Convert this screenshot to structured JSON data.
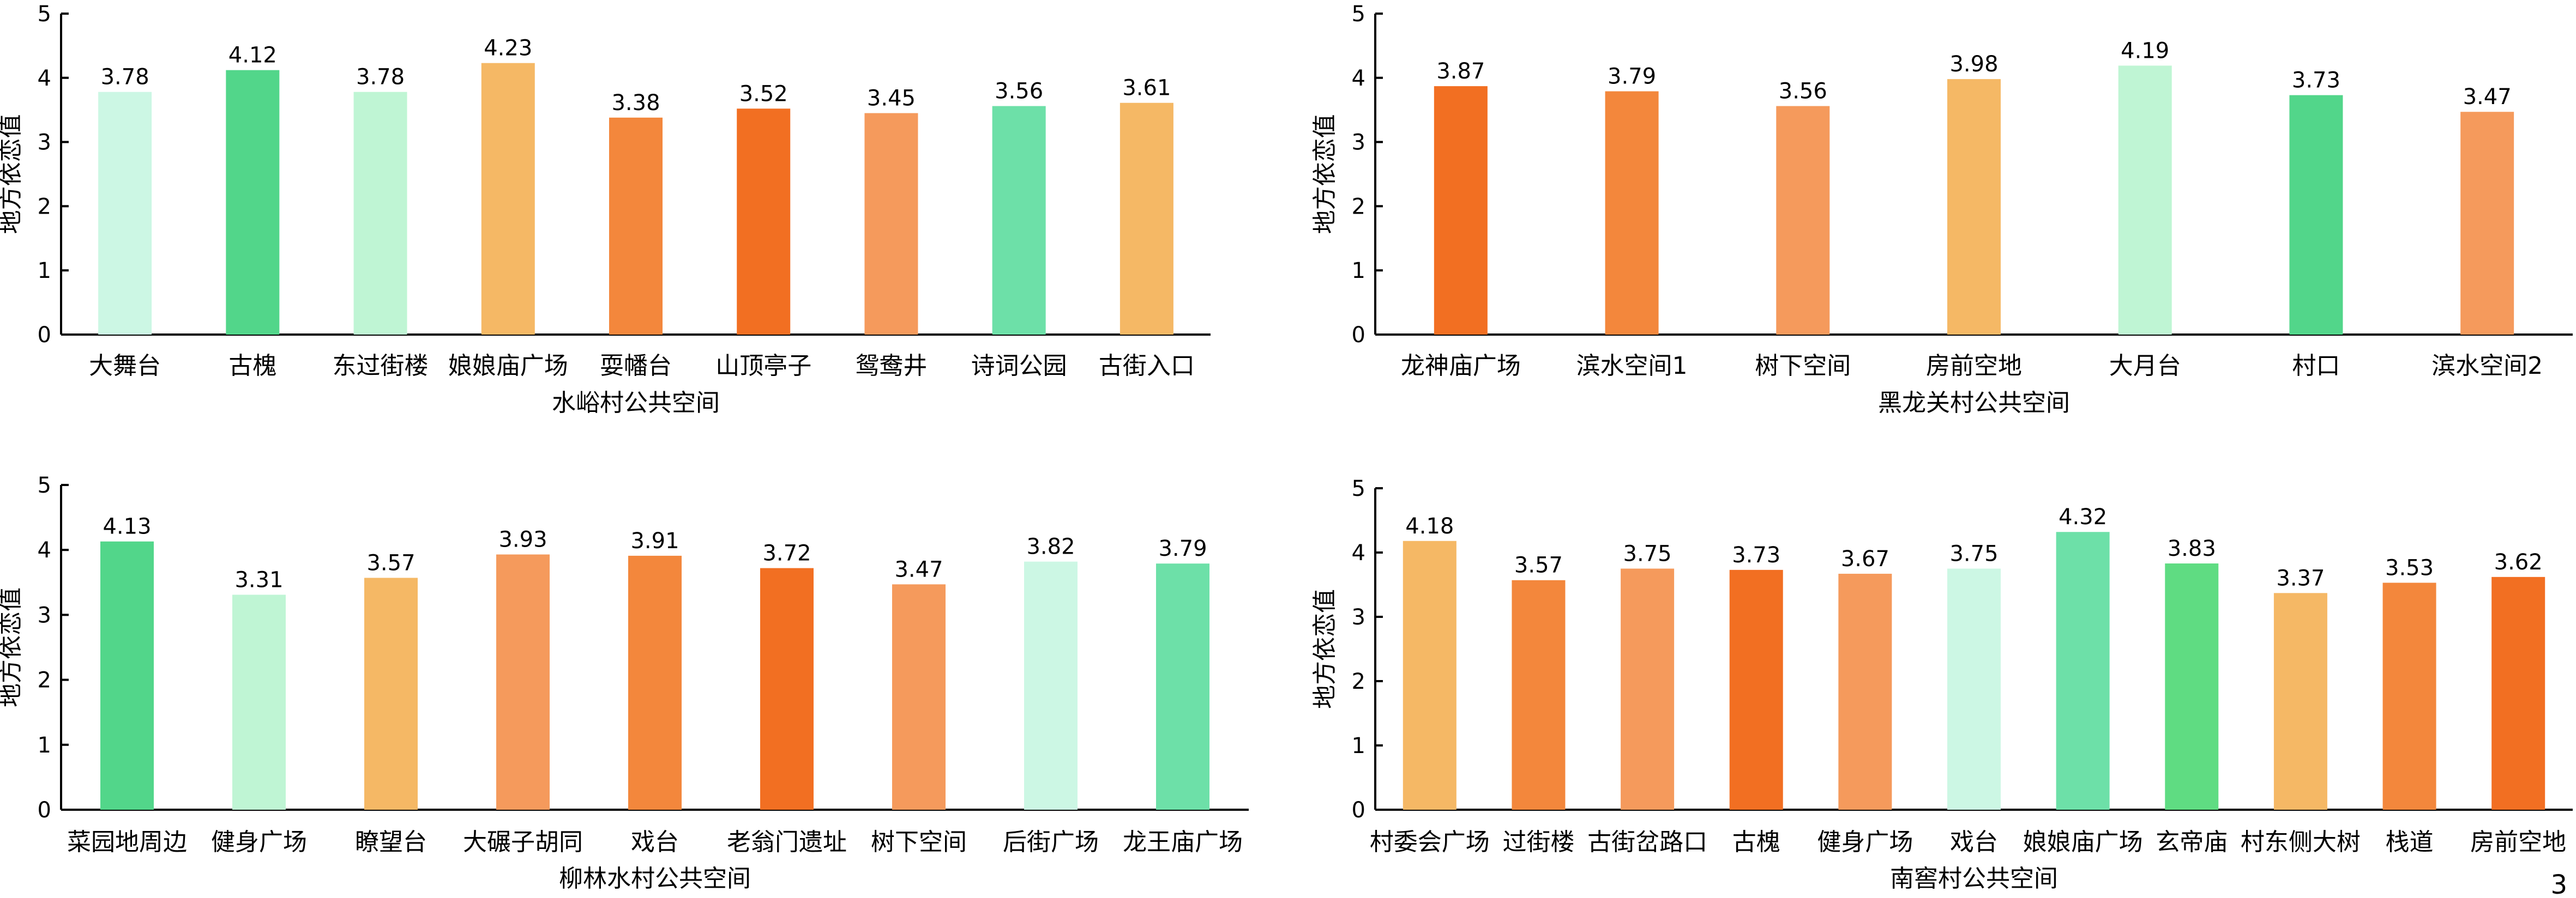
{
  "page_number": "3",
  "chart_data": [
    {
      "type": "bar",
      "title": "水峪村公共空间",
      "ylabel": "地方依恋值",
      "ylim": [
        0,
        5
      ],
      "yticks": [
        "0",
        "1",
        "2",
        "3",
        "4",
        "5"
      ],
      "grid": false,
      "categories": [
        "大舞台",
        "古槐",
        "东过街楼",
        "娘娘庙广场",
        "耍幡台",
        "山顶亭子",
        "鸳鸯井",
        "诗词公园",
        "古街入口"
      ],
      "values": [
        3.78,
        4.12,
        3.78,
        4.23,
        3.38,
        3.52,
        3.45,
        3.56,
        3.61
      ],
      "value_labels": [
        "3.78",
        "4.12",
        "3.78",
        "4.23",
        "3.38",
        "3.52",
        "3.45",
        "3.56",
        "3.61"
      ],
      "colors": [
        "#ccf7e4",
        "#52d68a",
        "#bff5d4",
        "#f5b865",
        "#f3873c",
        "#f26f22",
        "#f59a5c",
        "#6de0a8",
        "#f5b865"
      ]
    },
    {
      "type": "bar",
      "title": "黑龙关村公共空间",
      "ylabel": "地方依恋值",
      "ylim": [
        0,
        5
      ],
      "yticks": [
        "0",
        "1",
        "2",
        "3",
        "4",
        "5"
      ],
      "grid": false,
      "categories": [
        "龙神庙广场",
        "滨水空间1",
        "树下空间",
        "房前空地",
        "大月台",
        "村口",
        "滨水空间2"
      ],
      "values": [
        3.87,
        3.79,
        3.56,
        3.98,
        4.19,
        3.73,
        3.47
      ],
      "value_labels": [
        "3.87",
        "3.79",
        "3.56",
        "3.98",
        "4.19",
        "3.73",
        "3.47"
      ],
      "colors": [
        "#f26f22",
        "#f3873c",
        "#f59a5c",
        "#f5b865",
        "#bff5d4",
        "#52d68a",
        "#f59a5c"
      ]
    },
    {
      "type": "bar",
      "title": "柳林水村公共空间",
      "ylabel": "地方依恋值",
      "ylim": [
        0,
        5
      ],
      "yticks": [
        "0",
        "1",
        "2",
        "3",
        "4",
        "5"
      ],
      "grid": false,
      "categories": [
        "菜园地周边",
        "健身广场",
        "瞭望台",
        "大碾子胡同",
        "戏台",
        "老翁门遗址",
        "树下空间",
        "后街广场",
        "龙王庙广场"
      ],
      "values": [
        4.13,
        3.31,
        3.57,
        3.93,
        3.91,
        3.72,
        3.47,
        3.82,
        3.79
      ],
      "value_labels": [
        "4.13",
        "3.31",
        "3.57",
        "3.93",
        "3.91",
        "3.72",
        "3.47",
        "3.82",
        "3.79"
      ],
      "colors": [
        "#52d68a",
        "#bff5d4",
        "#f5b865",
        "#f59a5c",
        "#f3873c",
        "#f26f22",
        "#f59a5c",
        "#ccf7e4",
        "#6de0a8"
      ]
    },
    {
      "type": "bar",
      "title": "南窖村公共空间",
      "ylabel": "地方依恋值",
      "ylim": [
        0,
        5
      ],
      "yticks": [
        "0",
        "1",
        "2",
        "3",
        "4",
        "5"
      ],
      "grid": false,
      "categories": [
        "村委会广场",
        "过街楼",
        "古街岔路口",
        "古槐",
        "健身广场",
        "戏台",
        "娘娘庙广场",
        "玄帝庙",
        "村东侧大树",
        "栈道",
        "房前空地"
      ],
      "values": [
        4.18,
        3.57,
        3.75,
        3.73,
        3.67,
        3.75,
        4.32,
        3.83,
        3.37,
        3.53,
        3.62
      ],
      "value_labels": [
        "4.18",
        "3.57",
        "3.75",
        "3.73",
        "3.67",
        "3.75",
        "4.32",
        "3.83",
        "3.37",
        "3.53",
        "3.62"
      ],
      "colors": [
        "#f5b865",
        "#f3873c",
        "#f59a5c",
        "#f26f22",
        "#f59a5c",
        "#ccf7e4",
        "#6de0a8",
        "#5fdc82",
        "#f5b865",
        "#f3873c",
        "#f26f22"
      ]
    }
  ]
}
